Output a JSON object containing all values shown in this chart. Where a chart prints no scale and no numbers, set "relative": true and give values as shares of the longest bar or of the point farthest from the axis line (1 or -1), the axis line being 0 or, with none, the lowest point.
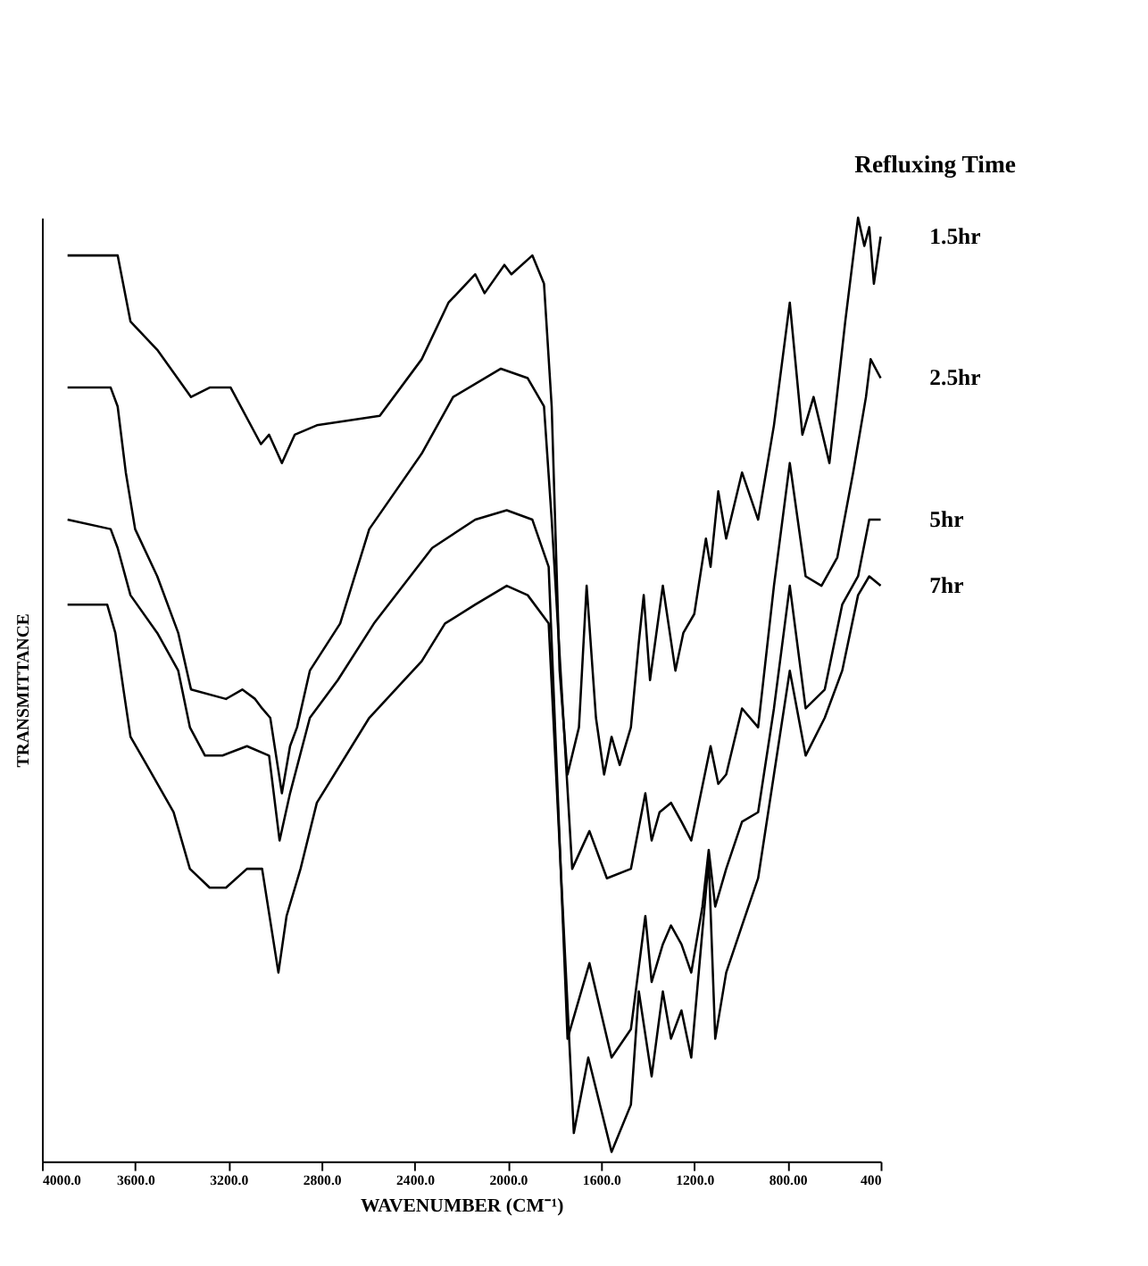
{
  "chart_data": {
    "type": "line",
    "relative": true,
    "xlabel": "WAVENUMBER (CM⁻¹)",
    "ylabel": "TRANSMITTANCE",
    "legend_title": "Refluxing Time",
    "grid": false,
    "xlim": [
      4000,
      400
    ],
    "xticks": [
      {
        "value": 4000,
        "label": "4000.0"
      },
      {
        "value": 3600,
        "label": "3600.0"
      },
      {
        "value": 3200,
        "label": "3200.0"
      },
      {
        "value": 2800,
        "label": "2800.0"
      },
      {
        "value": 2400,
        "label": "2400.0"
      },
      {
        "value": 2000,
        "label": "2000.0"
      },
      {
        "value": 1600,
        "label": "1600.0"
      },
      {
        "value": 1200,
        "label": "1200.0"
      },
      {
        "value": 800,
        "label": "800.00"
      },
      400
    ],
    "series": [
      {
        "name": "1.5hr",
        "color": "#000000",
        "x": [
          3890,
          3675,
          3620,
          3505,
          3360,
          3280,
          3190,
          3060,
          3025,
          2970,
          2915,
          2820,
          2550,
          2370,
          2255,
          2140,
          2100,
          2015,
          1985,
          1895,
          1845,
          1812,
          1778,
          1744,
          1695,
          1662,
          1622,
          1587,
          1555,
          1520,
          1472,
          1438,
          1417,
          1390,
          1335,
          1281,
          1247,
          1200,
          1150,
          1130,
          1097,
          1063,
          995,
          926,
          858,
          790,
          736,
          688,
          620,
          552,
          497,
          470,
          449,
          429,
          400
        ],
        "values": [
          0.96,
          0.96,
          0.89,
          0.86,
          0.81,
          0.82,
          0.82,
          0.76,
          0.77,
          0.74,
          0.77,
          0.78,
          0.79,
          0.85,
          0.91,
          0.94,
          0.92,
          0.95,
          0.94,
          0.96,
          0.93,
          0.8,
          0.52,
          0.41,
          0.46,
          0.61,
          0.47,
          0.41,
          0.45,
          0.42,
          0.46,
          0.55,
          0.6,
          0.51,
          0.61,
          0.52,
          0.56,
          0.58,
          0.66,
          0.63,
          0.71,
          0.66,
          0.73,
          0.68,
          0.78,
          0.91,
          0.77,
          0.81,
          0.74,
          0.89,
          1.0,
          0.97,
          0.99,
          0.93,
          0.98
        ]
      },
      {
        "name": "2.5hr",
        "color": "#000000",
        "x": [
          3890,
          3705,
          3675,
          3640,
          3600,
          3505,
          3415,
          3360,
          3210,
          3140,
          3085,
          3055,
          3020,
          2970,
          2935,
          2905,
          2850,
          2720,
          2595,
          2370,
          2235,
          2030,
          1915,
          1845,
          1812,
          1724,
          1650,
          1575,
          1472,
          1410,
          1383,
          1349,
          1300,
          1255,
          1213,
          1130,
          1097,
          1063,
          995,
          926,
          858,
          790,
          722,
          654,
          586,
          518,
          463,
          443,
          400
        ],
        "values": [
          0.82,
          0.82,
          0.8,
          0.73,
          0.67,
          0.62,
          0.56,
          0.5,
          0.49,
          0.5,
          0.49,
          0.48,
          0.47,
          0.39,
          0.44,
          0.46,
          0.52,
          0.57,
          0.67,
          0.75,
          0.81,
          0.84,
          0.83,
          0.8,
          0.68,
          0.31,
          0.35,
          0.3,
          0.31,
          0.39,
          0.34,
          0.37,
          0.38,
          0.36,
          0.34,
          0.44,
          0.4,
          0.41,
          0.48,
          0.46,
          0.61,
          0.74,
          0.62,
          0.61,
          0.64,
          0.73,
          0.81,
          0.85,
          0.83
        ]
      },
      {
        "name": "5hr",
        "color": "#000000",
        "x": [
          3890,
          3705,
          3675,
          3620,
          3505,
          3415,
          3365,
          3300,
          3225,
          3120,
          3025,
          2980,
          2935,
          2850,
          2730,
          2575,
          2325,
          2140,
          2005,
          1895,
          1825,
          1744,
          1650,
          1555,
          1472,
          1410,
          1383,
          1335,
          1300,
          1255,
          1213,
          1165,
          1138,
          1110,
          1063,
          995,
          926,
          858,
          790,
          722,
          640,
          565,
          497,
          449,
          400
        ],
        "values": [
          0.68,
          0.67,
          0.65,
          0.6,
          0.56,
          0.52,
          0.46,
          0.43,
          0.43,
          0.44,
          0.43,
          0.34,
          0.39,
          0.47,
          0.51,
          0.57,
          0.65,
          0.68,
          0.69,
          0.68,
          0.63,
          0.13,
          0.21,
          0.11,
          0.14,
          0.26,
          0.19,
          0.23,
          0.25,
          0.23,
          0.2,
          0.27,
          0.33,
          0.27,
          0.31,
          0.36,
          0.37,
          0.48,
          0.61,
          0.48,
          0.5,
          0.59,
          0.62,
          0.68,
          0.68
        ]
      },
      {
        "name": "7hr",
        "color": "#000000",
        "x": [
          3890,
          3720,
          3685,
          3650,
          3620,
          3550,
          3435,
          3365,
          3280,
          3210,
          3120,
          3055,
          2985,
          2950,
          2890,
          2820,
          2595,
          2370,
          2270,
          2140,
          2005,
          1915,
          1825,
          1717,
          1655,
          1555,
          1472,
          1438,
          1383,
          1335,
          1300,
          1255,
          1213,
          1138,
          1110,
          1063,
          995,
          926,
          858,
          790,
          722,
          640,
          565,
          497,
          449,
          400
        ],
        "values": [
          0.59,
          0.59,
          0.56,
          0.5,
          0.45,
          0.42,
          0.37,
          0.31,
          0.29,
          0.29,
          0.31,
          0.31,
          0.2,
          0.26,
          0.31,
          0.38,
          0.47,
          0.53,
          0.57,
          0.59,
          0.61,
          0.6,
          0.57,
          0.03,
          0.11,
          0.01,
          0.06,
          0.18,
          0.09,
          0.18,
          0.13,
          0.16,
          0.11,
          0.32,
          0.13,
          0.2,
          0.25,
          0.3,
          0.41,
          0.52,
          0.43,
          0.47,
          0.52,
          0.6,
          0.62,
          0.61
        ]
      }
    ]
  }
}
